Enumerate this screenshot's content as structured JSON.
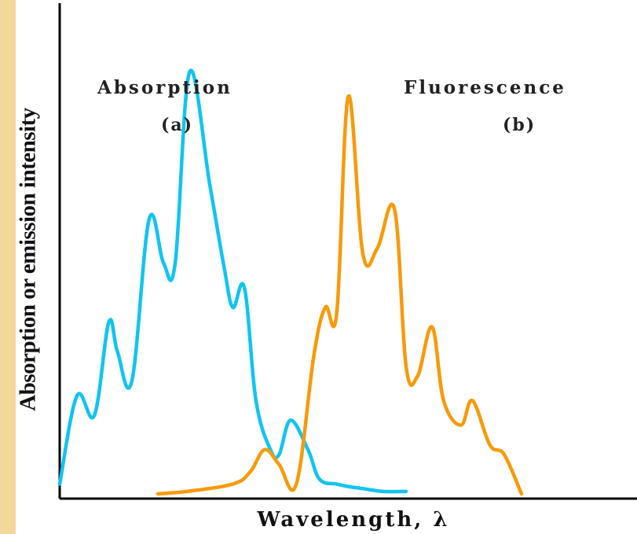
{
  "chart_data": {
    "type": "line",
    "title": "",
    "xlabel": "Wavelength, λ",
    "ylabel": "Absorption or emission intensity",
    "grid": false,
    "annotations": [
      {
        "text": "Absorption",
        "sub": "(a)"
      },
      {
        "text": "Fluorescence",
        "sub": "(b)"
      }
    ],
    "series": [
      {
        "name": "Absorption",
        "color": "#11c4f0",
        "x": [
          0.0,
          0.03,
          0.06,
          0.085,
          0.1,
          0.125,
          0.155,
          0.18,
          0.2,
          0.225,
          0.26,
          0.285,
          0.3,
          0.32,
          0.34,
          0.365,
          0.38,
          0.4,
          0.43,
          0.45,
          0.48,
          0.5,
          0.53,
          0.56,
          0.6
        ],
        "y": [
          0.02,
          0.2,
          0.16,
          0.35,
          0.29,
          0.23,
          0.56,
          0.47,
          0.47,
          0.86,
          0.63,
          0.46,
          0.38,
          0.42,
          0.19,
          0.09,
          0.08,
          0.15,
          0.09,
          0.03,
          0.02,
          0.015,
          0.01,
          0.005,
          0.005
        ]
      },
      {
        "name": "Fluorescence",
        "color": "#f79a0a",
        "x": [
          0.17,
          0.22,
          0.3,
          0.33,
          0.355,
          0.38,
          0.41,
          0.44,
          0.46,
          0.48,
          0.5,
          0.525,
          0.55,
          0.58,
          0.6,
          0.62,
          0.645,
          0.665,
          0.695,
          0.715,
          0.745,
          0.77,
          0.8
        ],
        "y": [
          0.0,
          0.005,
          0.02,
          0.045,
          0.09,
          0.06,
          0.02,
          0.28,
          0.38,
          0.37,
          0.81,
          0.49,
          0.5,
          0.58,
          0.26,
          0.24,
          0.34,
          0.19,
          0.14,
          0.19,
          0.1,
          0.08,
          0.0
        ]
      }
    ]
  }
}
